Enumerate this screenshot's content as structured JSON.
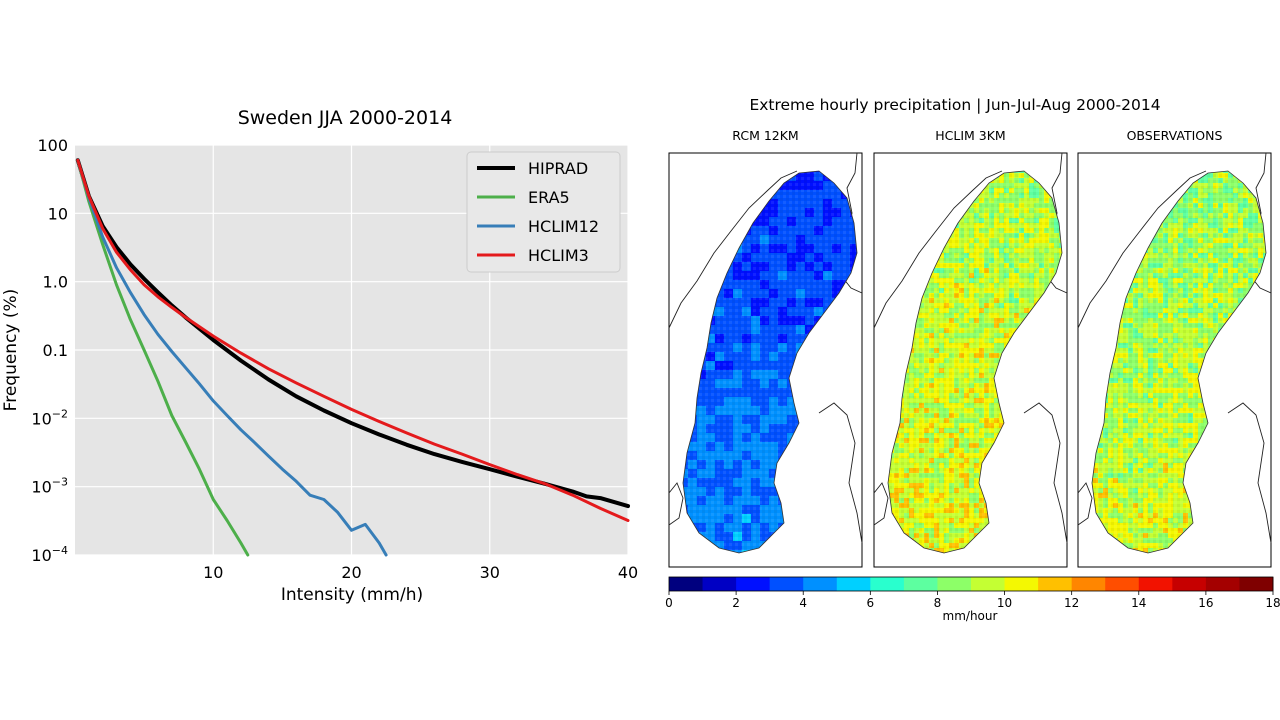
{
  "chart_data": [
    {
      "type": "line",
      "title": "Sweden  JJA 2000-2014",
      "xlabel": "Intensity (mm/h)",
      "ylabel": "Frequency (%)",
      "xlim": [
        0,
        40
      ],
      "ylim": [
        0.0001,
        100
      ],
      "yscale": "log",
      "grid": true,
      "legend_position": "top-right",
      "xticks": [
        10,
        20,
        30,
        40
      ],
      "yticks": [
        {
          "value": 100,
          "label": "100",
          "sup": ""
        },
        {
          "value": 10,
          "label": "10",
          "sup": ""
        },
        {
          "value": 1,
          "label": "1.0",
          "sup": ""
        },
        {
          "value": 0.1,
          "label": "0.1",
          "sup": ""
        },
        {
          "value": 0.01,
          "label": "10",
          "sup": "−2"
        },
        {
          "value": 0.001,
          "label": "10",
          "sup": "−3"
        },
        {
          "value": 0.0001,
          "label": "10",
          "sup": "−4"
        }
      ],
      "series": [
        {
          "name": "HIPRAD",
          "color": "#000000",
          "x": [
            0.2,
            1,
            2,
            3,
            4,
            5,
            6,
            7,
            8,
            10,
            12,
            14,
            16,
            18,
            20,
            22,
            24,
            26,
            28,
            30,
            32,
            34,
            36,
            37,
            38,
            40
          ],
          "y": [
            60,
            18,
            6.5,
            3.2,
            1.8,
            1.1,
            0.7,
            0.45,
            0.3,
            0.14,
            0.07,
            0.037,
            0.021,
            0.013,
            0.0085,
            0.0058,
            0.0041,
            0.003,
            0.0023,
            0.0018,
            0.0014,
            0.0011,
            0.00085,
            0.00072,
            0.00068,
            0.00052
          ]
        },
        {
          "name": "ERA5",
          "color": "#4daf4a",
          "x": [
            0.2,
            1,
            2,
            3,
            4,
            5,
            6,
            7,
            8,
            9,
            10,
            11,
            12,
            12.5
          ],
          "y": [
            60,
            15,
            3.5,
            0.9,
            0.28,
            0.1,
            0.035,
            0.011,
            0.0045,
            0.0018,
            0.00065,
            0.00032,
            0.00015,
            0.0001
          ]
        },
        {
          "name": "HCLIM12",
          "color": "#377eb8",
          "x": [
            0.2,
            1,
            2,
            3,
            4,
            5,
            6,
            7,
            8,
            9,
            10,
            11,
            12,
            13,
            14,
            15,
            16,
            17,
            18,
            19,
            20,
            21,
            22,
            22.5
          ],
          "y": [
            60,
            17,
            4.5,
            1.6,
            0.7,
            0.33,
            0.17,
            0.095,
            0.055,
            0.032,
            0.018,
            0.011,
            0.0068,
            0.0044,
            0.0028,
            0.0018,
            0.0012,
            0.00075,
            0.00065,
            0.00042,
            0.00023,
            0.00028,
            0.00015,
            0.0001
          ]
        },
        {
          "name": "HCLIM3",
          "color": "#e41a1c",
          "x": [
            0.2,
            1,
            2,
            3,
            4,
            5,
            6,
            7,
            8,
            10,
            12,
            14,
            16,
            18,
            20,
            22,
            24,
            26,
            28,
            30,
            32,
            34,
            36,
            38,
            40
          ],
          "y": [
            60,
            18,
            6.0,
            2.7,
            1.5,
            0.9,
            0.6,
            0.42,
            0.3,
            0.16,
            0.09,
            0.053,
            0.033,
            0.021,
            0.0135,
            0.009,
            0.0061,
            0.0042,
            0.003,
            0.0021,
            0.0015,
            0.0011,
            0.00075,
            0.00048,
            0.00032
          ]
        }
      ]
    },
    {
      "type": "heatmap",
      "title": "Extreme hourly precipitation  |  Jun-Jul-Aug 2000-2014",
      "panels": [
        {
          "title": "RCM 12KM",
          "typical_value": 3.5
        },
        {
          "title": "HCLIM 3KM",
          "typical_value": 9.5
        },
        {
          "title": "OBSERVATIONS",
          "typical_value": 9.0
        }
      ],
      "colorbar": {
        "label": "mm/hour",
        "min": 0,
        "max": 18,
        "step": 1,
        "ticks": [
          0,
          2,
          4,
          6,
          8,
          10,
          12,
          14,
          16,
          18
        ],
        "colors": [
          "#00007f",
          "#0000c4",
          "#0010ff",
          "#0050ff",
          "#0090ff",
          "#00d0ff",
          "#29ffce",
          "#5dffa0",
          "#8dff68",
          "#c4ff33",
          "#f4f802",
          "#ffc000",
          "#ff8600",
          "#ff4e00",
          "#f21200",
          "#c60000",
          "#a40000",
          "#7f0000"
        ]
      }
    }
  ]
}
